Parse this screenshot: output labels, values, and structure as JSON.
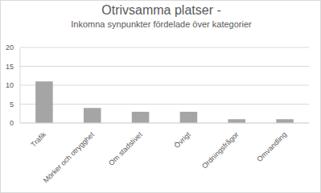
{
  "chart_data": {
    "type": "bar",
    "title": "Otrivsamma platser -",
    "subtitle": "Inkomna synpunkter fördelade över kategorier",
    "categories": [
      "Trafik",
      "Mörker och otrygghet",
      "Om stadslivet",
      "Övrigt",
      "Ordningsfrågor",
      "Omvandling"
    ],
    "values": [
      11,
      4,
      3,
      3,
      1,
      1
    ],
    "color": "#a5a5a5",
    "ylim": [
      0,
      20
    ],
    "yticks": [
      0,
      5,
      10,
      15,
      20
    ],
    "grid": true
  }
}
